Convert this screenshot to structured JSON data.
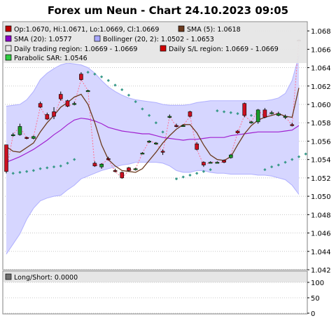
{
  "title": "Forex um Neun - Chart 24.10.2023 09:05",
  "legend": [
    {
      "text": "Op:1.0670, Hi:1.0671, Lo:1.0669, Cl:1.0669",
      "color": "#c00000",
      "shape": "square"
    },
    {
      "text": "SMA (5): 1.0618",
      "color": "#6b3a1e",
      "shape": "square"
    },
    {
      "text": "SMA (20): 1.0577",
      "color": "#8b00c8",
      "shape": "square"
    },
    {
      "text": "Bollinger (20, 2): 1.0502 - 1.0653",
      "color": "#a8a8ff",
      "shape": "square"
    },
    {
      "text": "Daily trading region: 1.0669 - 1.0669",
      "color": "#e8e8e8",
      "shape": "square"
    },
    {
      "text": "Daily S/L region: 1.0669 - 1.0669",
      "color": "#d00000",
      "shape": "square"
    },
    {
      "text": "Parabolic SAR: 1.0546",
      "color": "#2ecc40",
      "shape": "square"
    }
  ],
  "lower_legend": {
    "text": "Long/Short: 0.0000",
    "color": "#707070"
  },
  "colors": {
    "bull": "#1a9c2a",
    "bear": "#cc1020",
    "sma5": "#6b3a1e",
    "sma20": "#a020d0",
    "band_fill": "#d6d6ff",
    "band_line": "#b0b0ff",
    "sar": "#3a9a8a",
    "connector": "#ff7090",
    "grid": "#c8c8c8",
    "legend_bg": "#e6e6e6"
  },
  "chart_data": [
    {
      "type": "candlestick",
      "title": "Forex um Neun - Chart 24.10.2023 09:05",
      "ylim": [
        1.042,
        1.069
      ],
      "yticks": [
        "1.042",
        "1.044",
        "1.046",
        "1.048",
        "1.050",
        "1.052",
        "1.054",
        "1.056",
        "1.058",
        "1.060",
        "1.062",
        "1.064",
        "1.066",
        "1.068"
      ],
      "grid": true,
      "candles": [
        {
          "o": 1.0556,
          "h": 1.0556,
          "l": 1.0525,
          "c": 1.0527
        },
        {
          "o": 1.0566,
          "h": 1.0569,
          "l": 1.0565,
          "c": 1.0567
        },
        {
          "o": 1.0567,
          "h": 1.0579,
          "l": 1.0566,
          "c": 1.0576
        },
        {
          "o": 1.0564,
          "h": 1.0565,
          "l": 1.0562,
          "c": 1.0563
        },
        {
          "o": 1.0563,
          "h": 1.0566,
          "l": 1.0562,
          "c": 1.0565
        },
        {
          "o": 1.0601,
          "h": 1.0603,
          "l": 1.0596,
          "c": 1.0597
        },
        {
          "o": 1.0589,
          "h": 1.0591,
          "l": 1.0583,
          "c": 1.0584
        },
        {
          "o": 1.0592,
          "h": 1.0597,
          "l": 1.0584,
          "c": 1.0587
        },
        {
          "o": 1.0611,
          "h": 1.0614,
          "l": 1.0604,
          "c": 1.0606
        },
        {
          "o": 1.0604,
          "h": 1.0605,
          "l": 1.0597,
          "c": 1.0598
        },
        {
          "o": 1.0601,
          "h": 1.0603,
          "l": 1.0599,
          "c": 1.0601
        },
        {
          "o": 1.0633,
          "h": 1.0635,
          "l": 1.0626,
          "c": 1.0627
        },
        {
          "o": 1.0614,
          "h": 1.0616,
          "l": 1.0614,
          "c": 1.0615
        },
        {
          "o": 1.0536,
          "h": 1.0538,
          "l": 1.0532,
          "c": 1.0533
        },
        {
          "o": 1.0532,
          "h": 1.0536,
          "l": 1.053,
          "c": 1.0535
        },
        {
          "o": 1.0541,
          "h": 1.0543,
          "l": 1.0539,
          "c": 1.054
        },
        {
          "o": 1.0528,
          "h": 1.053,
          "l": 1.0526,
          "c": 1.0527
        },
        {
          "o": 1.0526,
          "h": 1.0527,
          "l": 1.0519,
          "c": 1.052
        },
        {
          "o": 1.0531,
          "h": 1.0532,
          "l": 1.0527,
          "c": 1.0528
        },
        {
          "o": 1.0529,
          "h": 1.0531,
          "l": 1.0528,
          "c": 1.053
        },
        {
          "o": 1.0547,
          "h": 1.0548,
          "l": 1.0546,
          "c": 1.0547
        },
        {
          "o": 1.0559,
          "h": 1.0561,
          "l": 1.0558,
          "c": 1.056
        },
        {
          "o": 1.0557,
          "h": 1.0559,
          "l": 1.0556,
          "c": 1.0558
        },
        {
          "o": 1.0549,
          "h": 1.0551,
          "l": 1.0545,
          "c": 1.0548
        },
        {
          "o": 1.0587,
          "h": 1.0589,
          "l": 1.0585,
          "c": 1.0587
        },
        {
          "o": 1.0577,
          "h": 1.0579,
          "l": 1.0575,
          "c": 1.0576
        },
        {
          "o": 1.0577,
          "h": 1.0578,
          "l": 1.0576,
          "c": 1.0577
        },
        {
          "o": 1.0592,
          "h": 1.0593,
          "l": 1.0586,
          "c": 1.0587
        },
        {
          "o": 1.0557,
          "h": 1.0559,
          "l": 1.055,
          "c": 1.0551
        },
        {
          "o": 1.0537,
          "h": 1.0538,
          "l": 1.0532,
          "c": 1.0534
        },
        {
          "o": 1.0537,
          "h": 1.0538,
          "l": 1.0536,
          "c": 1.0537
        },
        {
          "o": 1.0537,
          "h": 1.0538,
          "l": 1.0536,
          "c": 1.0537
        },
        {
          "o": 1.0539,
          "h": 1.054,
          "l": 1.0536,
          "c": 1.0537
        },
        {
          "o": 1.0542,
          "h": 1.0546,
          "l": 1.0541,
          "c": 1.0545
        },
        {
          "o": 1.0571,
          "h": 1.0572,
          "l": 1.0568,
          "c": 1.0569
        },
        {
          "o": 1.0601,
          "h": 1.0602,
          "l": 1.0586,
          "c": 1.0588
        },
        {
          "o": 1.058,
          "h": 1.0582,
          "l": 1.0579,
          "c": 1.0581
        },
        {
          "o": 1.0581,
          "h": 1.0595,
          "l": 1.0579,
          "c": 1.0594
        },
        {
          "o": 1.0594,
          "h": 1.0596,
          "l": 1.0585,
          "c": 1.0586
        },
        {
          "o": 1.0591,
          "h": 1.0593,
          "l": 1.0589,
          "c": 1.0591
        },
        {
          "o": 1.0588,
          "h": 1.0592,
          "l": 1.0587,
          "c": 1.059
        },
        {
          "o": 1.0586,
          "h": 1.0589,
          "l": 1.0584,
          "c": 1.0587
        },
        {
          "o": 1.0578,
          "h": 1.058,
          "l": 1.0576,
          "c": 1.0577
        },
        {
          "o": 1.067,
          "h": 1.0671,
          "l": 1.0669,
          "c": 1.0669
        }
      ],
      "sma5": [
        1.0554,
        1.0549,
        1.0548,
        1.0553,
        1.0558,
        1.057,
        1.058,
        1.0588,
        1.0597,
        1.0602,
        1.0608,
        1.0611,
        1.06,
        1.058,
        1.0556,
        1.054,
        1.0533,
        1.0528,
        1.0527,
        1.0526,
        1.053,
        1.0539,
        1.0548,
        1.0558,
        1.0566,
        1.0573,
        1.0578,
        1.0578,
        1.0569,
        1.0556,
        1.0545,
        1.054,
        1.0539,
        1.0543,
        1.0556,
        1.0568,
        1.0577,
        1.0583,
        1.0586,
        1.0588,
        1.059,
        1.0587,
        1.0586,
        1.0618
      ],
      "sma20": [
        1.0537,
        1.054,
        1.0543,
        1.0547,
        1.0551,
        1.0556,
        1.0561,
        1.0567,
        1.0572,
        1.0578,
        1.0583,
        1.0585,
        1.0584,
        1.0582,
        1.0579,
        1.0575,
        1.0573,
        1.0571,
        1.057,
        1.0569,
        1.0568,
        1.0568,
        1.0566,
        1.0564,
        1.0563,
        1.0562,
        1.0561,
        1.0562,
        1.0562,
        1.0563,
        1.0564,
        1.0564,
        1.0564,
        1.0566,
        1.0567,
        1.0568,
        1.0569,
        1.057,
        1.057,
        1.057,
        1.057,
        1.0571,
        1.0572,
        1.0577
      ],
      "bb_upper": [
        1.0598,
        1.0599,
        1.06,
        1.0605,
        1.0614,
        1.0627,
        1.0634,
        1.0639,
        1.0643,
        1.0645,
        1.0644,
        1.0643,
        1.064,
        1.0634,
        1.0626,
        1.0619,
        1.0614,
        1.061,
        1.0607,
        1.0605,
        1.0604,
        1.0603,
        1.0602,
        1.06,
        1.0599,
        1.0599,
        1.0599,
        1.06,
        1.0602,
        1.0603,
        1.0604,
        1.0604,
        1.0604,
        1.0604,
        1.0604,
        1.0604,
        1.0604,
        1.0604,
        1.0604,
        1.0605,
        1.0607,
        1.0612,
        1.0626,
        1.0653
      ],
      "bb_lower": [
        1.0437,
        1.0448,
        1.0459,
        1.0475,
        1.0487,
        1.0495,
        1.0498,
        1.05,
        1.0501,
        1.0507,
        1.0512,
        1.0519,
        1.0522,
        1.0525,
        1.0528,
        1.053,
        1.0532,
        1.0534,
        1.0535,
        1.0537,
        1.0537,
        1.0537,
        1.0537,
        1.0536,
        1.0533,
        1.0528,
        1.0526,
        1.0526,
        1.0528,
        1.0528,
        1.0526,
        1.0525,
        1.0525,
        1.0524,
        1.0524,
        1.0524,
        1.0524,
        1.0523,
        1.0523,
        1.0522,
        1.052,
        1.0518,
        1.0512,
        1.0502
      ],
      "sar": [
        {
          "i": 1,
          "v": 1.0525
        },
        {
          "i": 2,
          "v": 1.0526
        },
        {
          "i": 3,
          "v": 1.0527
        },
        {
          "i": 4,
          "v": 1.0528
        },
        {
          "i": 5,
          "v": 1.053
        },
        {
          "i": 6,
          "v": 1.0531
        },
        {
          "i": 7,
          "v": 1.0532
        },
        {
          "i": 8,
          "v": 1.0533
        },
        {
          "i": 9,
          "v": 1.0536
        },
        {
          "i": 10,
          "v": 1.054
        },
        {
          "i": 12,
          "v": 1.0635
        },
        {
          "i": 13,
          "v": 1.0633
        },
        {
          "i": 14,
          "v": 1.063
        },
        {
          "i": 15,
          "v": 1.0626
        },
        {
          "i": 16,
          "v": 1.0621
        },
        {
          "i": 17,
          "v": 1.0616
        },
        {
          "i": 18,
          "v": 1.061
        },
        {
          "i": 19,
          "v": 1.0603
        },
        {
          "i": 20,
          "v": 1.0595
        },
        {
          "i": 21,
          "v": 1.0588
        },
        {
          "i": 22,
          "v": 1.058
        },
        {
          "i": 23,
          "v": 1.057
        },
        {
          "i": 25,
          "v": 1.0519
        },
        {
          "i": 26,
          "v": 1.0521
        },
        {
          "i": 27,
          "v": 1.0523
        },
        {
          "i": 28,
          "v": 1.0525
        },
        {
          "i": 29,
          "v": 1.0527
        },
        {
          "i": 30,
          "v": 1.0529
        },
        {
          "i": 31,
          "v": 1.0593
        },
        {
          "i": 32,
          "v": 1.0592
        },
        {
          "i": 33,
          "v": 1.0591
        },
        {
          "i": 34,
          "v": 1.059
        },
        {
          "i": 35,
          "v": 1.0589
        },
        {
          "i": 36,
          "v": 1.0588
        },
        {
          "i": 37,
          "v": 1.0587
        },
        {
          "i": 38,
          "v": 1.0529
        },
        {
          "i": 39,
          "v": 1.0532
        },
        {
          "i": 40,
          "v": 1.0534
        },
        {
          "i": 41,
          "v": 1.0537
        },
        {
          "i": 42,
          "v": 1.054
        },
        {
          "i": 43,
          "v": 1.0543
        },
        {
          "i": 44,
          "v": 1.0546
        }
      ]
    },
    {
      "type": "line",
      "title": "Long/Short: 0.0000",
      "ylim": [
        0,
        100
      ],
      "yticks": [
        "0",
        "50",
        "100"
      ],
      "grid": true,
      "series": [
        {
          "name": "Long/Short",
          "values": []
        }
      ]
    }
  ]
}
